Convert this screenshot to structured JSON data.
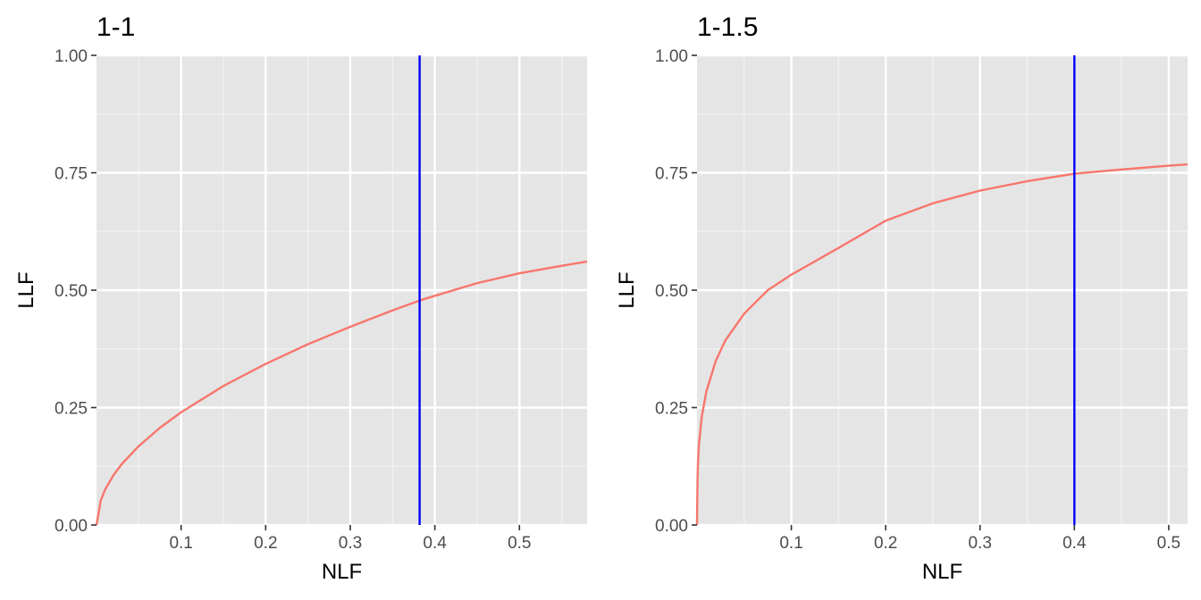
{
  "chart_data": [
    {
      "type": "line",
      "title": "1-1",
      "xlabel": "NLF",
      "ylabel": "LLF",
      "xlim": [
        0,
        0.58
      ],
      "ylim": [
        0,
        1
      ],
      "x_ticks": [
        0.1,
        0.2,
        0.3,
        0.4,
        0.5
      ],
      "x_tick_labels": [
        "0.1",
        "0.2",
        "0.3",
        "0.4",
        "0.5"
      ],
      "y_ticks": [
        0,
        0.25,
        0.5,
        0.75,
        1
      ],
      "y_tick_labels": [
        "0.00",
        "0.25",
        "0.50",
        "0.75",
        "1.00"
      ],
      "grid": true,
      "series": [
        {
          "color": "#f8766d",
          "x": [
            0,
            0.005,
            0.01,
            0.02,
            0.03,
            0.05,
            0.075,
            0.1,
            0.15,
            0.2,
            0.25,
            0.3,
            0.35,
            0.382,
            0.4,
            0.45,
            0.5,
            0.55,
            0.58
          ],
          "y": [
            0,
            0.052,
            0.075,
            0.106,
            0.13,
            0.168,
            0.207,
            0.24,
            0.296,
            0.343,
            0.385,
            0.422,
            0.457,
            0.478,
            0.488,
            0.515,
            0.536,
            0.552,
            0.561
          ]
        }
      ],
      "vline": {
        "x": 0.382,
        "color": "#0000ff"
      }
    },
    {
      "type": "line",
      "title": "1-1.5",
      "xlabel": "NLF",
      "ylabel": "LLF",
      "xlim": [
        0,
        0.52
      ],
      "ylim": [
        0,
        1
      ],
      "x_ticks": [
        0.1,
        0.2,
        0.3,
        0.4,
        0.5
      ],
      "x_tick_labels": [
        "0.1",
        "0.2",
        "0.3",
        "0.4",
        "0.5"
      ],
      "y_ticks": [
        0,
        0.25,
        0.5,
        0.75,
        1
      ],
      "y_tick_labels": [
        "0.00",
        "0.25",
        "0.50",
        "0.75",
        "1.00"
      ],
      "grid": true,
      "series": [
        {
          "color": "#f8766d",
          "x": [
            0,
            0.0005,
            0.001,
            0.002,
            0.005,
            0.01,
            0.02,
            0.03,
            0.05,
            0.075,
            0.1,
            0.15,
            0.2,
            0.25,
            0.3,
            0.35,
            0.4,
            0.45,
            0.5,
            0.52
          ],
          "y": [
            0,
            0.09,
            0.13,
            0.17,
            0.23,
            0.285,
            0.35,
            0.393,
            0.45,
            0.5,
            0.533,
            0.59,
            0.648,
            0.685,
            0.712,
            0.732,
            0.748,
            0.757,
            0.765,
            0.768
          ]
        }
      ],
      "vline": {
        "x": 0.4,
        "color": "#0000ff"
      }
    }
  ]
}
